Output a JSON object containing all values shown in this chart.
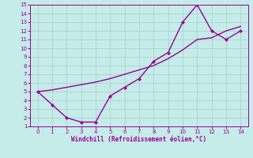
{
  "xlabel": "Windchill (Refroidissement éolien,°C)",
  "xlim": [
    -0.5,
    14.5
  ],
  "ylim": [
    1,
    15
  ],
  "xticks": [
    0,
    1,
    2,
    3,
    4,
    5,
    6,
    7,
    8,
    9,
    10,
    11,
    12,
    13,
    14
  ],
  "yticks": [
    1,
    2,
    3,
    4,
    5,
    6,
    7,
    8,
    9,
    10,
    11,
    12,
    13,
    14,
    15
  ],
  "background_color": "#c5ece8",
  "grid_color": "#aad4cf",
  "line_color": "#990099",
  "line1_x": [
    0,
    1,
    2,
    3,
    4,
    5,
    6,
    7,
    8,
    9,
    10,
    11,
    12,
    13,
    14
  ],
  "line1_y": [
    5,
    3.5,
    2,
    1.5,
    1.5,
    4.5,
    5.5,
    6.5,
    8.5,
    9.5,
    13,
    15,
    12,
    11,
    12
  ],
  "line2_x": [
    0,
    1,
    2,
    3,
    4,
    5,
    6,
    7,
    8,
    9,
    10,
    11,
    12,
    13,
    14
  ],
  "line2_y": [
    5.0,
    5.2,
    5.5,
    5.8,
    6.1,
    6.5,
    7.0,
    7.5,
    8.0,
    8.8,
    9.8,
    11.0,
    11.2,
    12.0,
    12.5
  ],
  "marker": "D",
  "marker_size": 2.5,
  "line_width": 1.0
}
